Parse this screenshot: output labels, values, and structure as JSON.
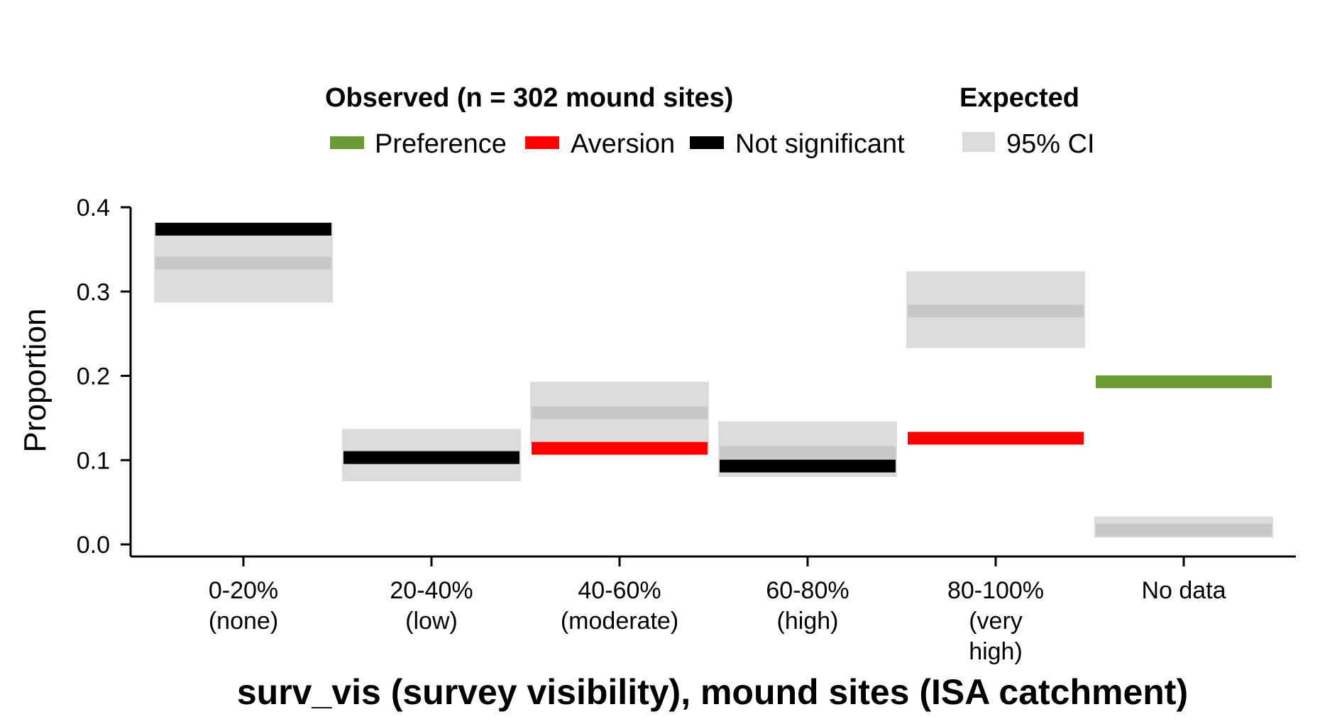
{
  "legend": {
    "observed_title": "Observed (n = 302 mound sites)",
    "expected_title": "Expected",
    "items": [
      {
        "label": "Preference",
        "color": "#6a9a33"
      },
      {
        "label": "Aversion",
        "color": "#ff0000"
      },
      {
        "label": "Not significant",
        "color": "#000000"
      }
    ],
    "ci_label": "95% CI",
    "ci_color": "#dcdcdc",
    "expected_line_color": "#c8c8c8"
  },
  "chart_data": {
    "type": "bar",
    "title": "",
    "xlabel": "surv_vis (survey visibility), mound sites (ISA catchment)",
    "ylabel": "Proportion",
    "ylim": [
      0,
      0.4
    ],
    "yticks": [
      "0.0",
      "0.1",
      "0.2",
      "0.3",
      "0.4"
    ],
    "categories": [
      {
        "label": [
          "0-20%",
          "(none)"
        ],
        "observed": 0.374,
        "significance": "Not significant",
        "expected": 0.334,
        "ci": [
          0.287,
          0.382
        ]
      },
      {
        "label": [
          "20-40%",
          "(low)"
        ],
        "observed": 0.103,
        "significance": "Not significant",
        "expected": 0.104,
        "ci": [
          0.075,
          0.137
        ]
      },
      {
        "label": [
          "40-60%",
          "(moderate)"
        ],
        "observed": 0.114,
        "significance": "Aversion",
        "expected": 0.156,
        "ci": [
          0.119,
          0.193
        ]
      },
      {
        "label": [
          "60-80%",
          "(high)"
        ],
        "observed": 0.093,
        "significance": "Not significant",
        "expected": 0.109,
        "ci": [
          0.08,
          0.146
        ]
      },
      {
        "label": [
          "80-100%",
          "(very",
          "high)"
        ],
        "observed": 0.126,
        "significance": "Aversion",
        "expected": 0.277,
        "ci": [
          0.233,
          0.324
        ]
      },
      {
        "label": [
          "No data"
        ],
        "observed": 0.193,
        "significance": "Preference",
        "expected": 0.017,
        "ci": [
          0.008,
          0.033
        ]
      }
    ]
  }
}
